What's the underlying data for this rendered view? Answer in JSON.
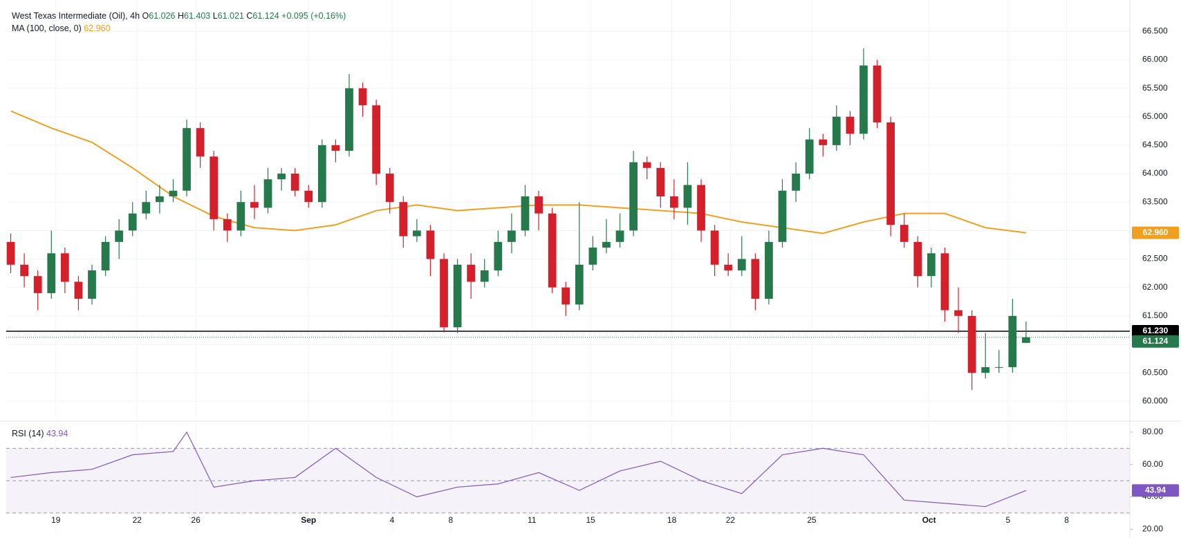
{
  "chart_data": {
    "type": "candlestick",
    "title": "West Texas Intermediate (Oil), 4h",
    "ohlc_labels": [
      "O",
      "H",
      "L",
      "C"
    ],
    "change": "+0.095 (+0.16%)",
    "up_color": "#26794a",
    "down_color": "#d3202a",
    "grid": true,
    "x": [
      0,
      3,
      6,
      9,
      12,
      15,
      18,
      21,
      24,
      27,
      30,
      33,
      36,
      39,
      42,
      45,
      48,
      51,
      54,
      57,
      60,
      63,
      66,
      69,
      72,
      75,
      78,
      81,
      84,
      87,
      90,
      93,
      96,
      99,
      102,
      105,
      108,
      111,
      114,
      117,
      120,
      123,
      126,
      129,
      132,
      135,
      138,
      141,
      144,
      147,
      150,
      153,
      156,
      159,
      162,
      165,
      168,
      171,
      174,
      177,
      180,
      183,
      186,
      189,
      192,
      195,
      198,
      201,
      204,
      207,
      210,
      213,
      216,
      219,
      222,
      225
    ],
    "open": [
      62.8,
      62.4,
      62.2,
      61.9,
      62.6,
      62.1,
      61.8,
      62.3,
      62.8,
      63.0,
      63.3,
      63.5,
      63.6,
      63.7,
      64.8,
      64.3,
      63.2,
      63.0,
      63.5,
      63.4,
      63.9,
      64.0,
      63.7,
      63.5,
      64.5,
      64.4,
      65.5,
      65.2,
      64.0,
      63.5,
      62.9,
      63.0,
      62.5,
      61.3,
      62.4,
      62.1,
      62.3,
      62.8,
      63.0,
      63.6,
      63.3,
      62.0,
      61.7,
      62.4,
      62.7,
      62.8,
      63.0,
      64.2,
      64.1,
      63.6,
      63.4,
      63.8,
      63.0,
      62.4,
      62.3,
      62.5,
      61.8,
      62.8,
      63.7,
      64.0,
      64.6,
      64.5,
      65.0,
      64.7,
      65.9,
      64.9,
      63.1,
      62.8,
      62.2,
      62.6,
      61.6,
      61.5,
      60.5,
      60.6,
      60.6,
      61.026
    ],
    "high": [
      62.95,
      62.6,
      62.3,
      63.0,
      62.7,
      62.2,
      62.4,
      62.9,
      63.2,
      63.5,
      63.7,
      63.8,
      63.9,
      64.95,
      64.9,
      64.4,
      63.3,
      63.7,
      63.8,
      64.1,
      64.1,
      64.1,
      63.8,
      64.6,
      64.6,
      65.75,
      65.6,
      65.3,
      64.1,
      63.6,
      63.2,
      63.1,
      62.6,
      62.5,
      62.6,
      62.5,
      63.0,
      63.3,
      63.8,
      63.7,
      63.4,
      62.1,
      63.5,
      62.9,
      63.2,
      63.3,
      64.4,
      64.3,
      64.2,
      63.9,
      64.2,
      63.9,
      63.1,
      62.6,
      62.9,
      62.6,
      63.0,
      63.9,
      64.2,
      64.8,
      64.7,
      65.2,
      65.1,
      66.2,
      66.0,
      65.0,
      63.3,
      62.9,
      62.7,
      62.7,
      62.0,
      61.6,
      61.2,
      60.9,
      61.8,
      61.403
    ],
    "low": [
      62.25,
      62.0,
      61.6,
      61.8,
      61.9,
      61.6,
      61.7,
      62.2,
      62.5,
      62.9,
      63.2,
      63.3,
      63.5,
      63.6,
      64.1,
      63.0,
      62.8,
      62.9,
      63.2,
      63.3,
      63.7,
      63.6,
      63.4,
      63.4,
      64.2,
      64.3,
      65.0,
      63.8,
      63.3,
      62.7,
      62.8,
      62.2,
      61.21,
      61.2,
      61.8,
      62.0,
      62.2,
      62.6,
      62.9,
      63.0,
      61.9,
      61.5,
      61.6,
      62.3,
      62.6,
      62.7,
      62.9,
      63.9,
      63.4,
      63.2,
      63.1,
      62.8,
      62.2,
      62.2,
      62.2,
      61.6,
      61.7,
      62.7,
      63.5,
      63.9,
      64.3,
      64.4,
      64.5,
      64.6,
      64.8,
      62.9,
      62.7,
      62.0,
      62.0,
      61.4,
      61.2,
      60.2,
      60.4,
      60.5,
      60.5,
      61.021
    ],
    "close": [
      62.4,
      62.2,
      61.9,
      62.6,
      62.1,
      61.8,
      62.3,
      62.8,
      63.0,
      63.3,
      63.5,
      63.6,
      63.7,
      64.8,
      64.3,
      63.2,
      63.0,
      63.5,
      63.4,
      63.9,
      64.0,
      63.7,
      63.5,
      64.5,
      64.4,
      65.5,
      65.2,
      64.0,
      63.5,
      62.9,
      63.0,
      62.5,
      61.3,
      62.4,
      62.1,
      62.3,
      62.8,
      63.0,
      63.6,
      63.3,
      62.0,
      61.7,
      62.4,
      62.7,
      62.8,
      63.0,
      64.2,
      64.1,
      63.6,
      63.4,
      63.8,
      63.0,
      62.4,
      62.3,
      62.5,
      61.8,
      62.8,
      63.7,
      64.0,
      64.6,
      64.5,
      65.0,
      64.7,
      65.9,
      64.9,
      63.1,
      62.8,
      62.2,
      62.6,
      61.6,
      61.5,
      60.5,
      60.6,
      60.6,
      61.5,
      61.124
    ],
    "xlim": [
      -1,
      248
    ],
    "xticks": [
      {
        "value": 10,
        "label": "19"
      },
      {
        "value": 28,
        "label": "22"
      },
      {
        "value": 41,
        "label": "26"
      },
      {
        "value": 66,
        "label": "Sep"
      },
      {
        "value": 84.5,
        "label": "4"
      },
      {
        "value": 97.5,
        "label": "8"
      },
      {
        "value": 115.5,
        "label": "11"
      },
      {
        "value": 128.5,
        "label": "15"
      },
      {
        "value": 146.5,
        "label": "18"
      },
      {
        "value": 159.5,
        "label": "22"
      },
      {
        "value": 177.5,
        "label": "25"
      },
      {
        "value": 203.5,
        "label": "Oct"
      },
      {
        "value": 221,
        "label": "5"
      },
      {
        "value": 234,
        "label": "8"
      }
    ],
    "ylim": [
      59.7,
      67.05
    ],
    "yticks": [
      {
        "value": 60,
        "label": "60.000"
      },
      {
        "value": 60.5,
        "label": "60.500"
      },
      {
        "value": 61,
        "label": "61.000"
      },
      {
        "value": 61.5,
        "label": "61.500"
      },
      {
        "value": 62,
        "label": "62.000"
      },
      {
        "value": 62.5,
        "label": "62.500"
      },
      {
        "value": 63,
        "label": "63.000"
      },
      {
        "value": 63.5,
        "label": "63.500"
      },
      {
        "value": 64,
        "label": "64.000"
      },
      {
        "value": 64.5,
        "label": "64.500"
      },
      {
        "value": 65,
        "label": "65.000"
      },
      {
        "value": 65.5,
        "label": "65.500"
      },
      {
        "value": 66,
        "label": "66.000"
      },
      {
        "value": 66.5,
        "label": "66.500"
      }
    ],
    "ma": {
      "name": "MA (100, close, 0)",
      "color": "#f0a020",
      "x": [
        0,
        9,
        18,
        27,
        36,
        45,
        54,
        63,
        72,
        81,
        90,
        99,
        108,
        117,
        126,
        135,
        144,
        153,
        162,
        171,
        180,
        189,
        198,
        207,
        216,
        225
      ],
      "values": [
        65.1,
        64.8,
        64.55,
        64.1,
        63.6,
        63.25,
        63.05,
        63.0,
        63.1,
        63.35,
        63.45,
        63.35,
        63.4,
        63.45,
        63.45,
        63.4,
        63.35,
        63.3,
        63.15,
        63.05,
        62.95,
        63.15,
        63.3,
        63.3,
        63.05,
        62.96
      ],
      "last_label": "62.960"
    },
    "price_line": {
      "value": 61.23,
      "label": "61.230",
      "color": "#000000"
    },
    "rsi": {
      "name": "RSI (14)",
      "color": "#7e57c2",
      "x": [
        0,
        9,
        18,
        27,
        36,
        39,
        45,
        54,
        63,
        72,
        81,
        90,
        99,
        108,
        117,
        126,
        135,
        144,
        153,
        162,
        171,
        180,
        189,
        198,
        207,
        216,
        225
      ],
      "values": [
        52,
        55,
        57,
        66,
        68,
        80,
        46,
        50,
        52,
        70,
        52,
        40,
        46,
        48,
        55,
        44,
        56,
        62,
        50,
        42,
        66,
        70,
        66,
        38,
        36,
        34,
        43.94
      ],
      "ylim": [
        18,
        85.5
      ],
      "yticks": [
        {
          "value": 20,
          "label": "20.00"
        },
        {
          "value": 40,
          "label": "40.00"
        },
        {
          "value": 60,
          "label": "60.00"
        },
        {
          "value": 80,
          "label": "80.00"
        }
      ],
      "bands": [
        30,
        50,
        70
      ]
    }
  }
}
